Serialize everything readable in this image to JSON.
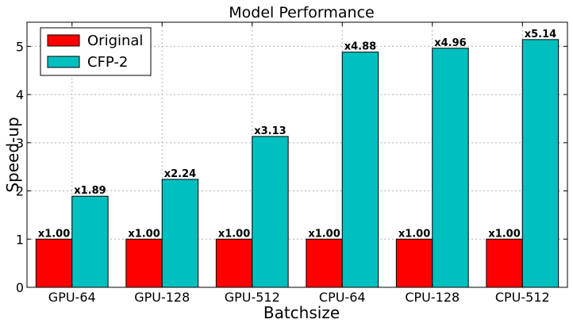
{
  "chart_data": {
    "type": "bar",
    "title": "Model Performance",
    "xlabel": "Batchsize",
    "ylabel": "Speed-up",
    "categories": [
      "GPU-64",
      "GPU-128",
      "GPU-512",
      "CPU-64",
      "CPU-128",
      "CPU-512"
    ],
    "series": [
      {
        "name": "Original",
        "color": "#ff0000",
        "values": [
          1.0,
          1.0,
          1.0,
          1.0,
          1.0,
          1.0
        ],
        "labels": [
          "x1.00",
          "x1.00",
          "x1.00",
          "x1.00",
          "x1.00",
          "x1.00"
        ]
      },
      {
        "name": "CFP-2",
        "color": "#00bfbf",
        "values": [
          1.89,
          2.24,
          3.13,
          4.88,
          4.96,
          5.14
        ],
        "labels": [
          "x1.89",
          "x2.24",
          "x3.13",
          "x4.88",
          "x4.96",
          "x5.14"
        ]
      }
    ],
    "ylim": [
      0,
      5.5
    ],
    "yticks": [
      "0",
      "1",
      "2",
      "3",
      "4",
      "5"
    ],
    "grid": true,
    "legend_position": "top-left"
  }
}
